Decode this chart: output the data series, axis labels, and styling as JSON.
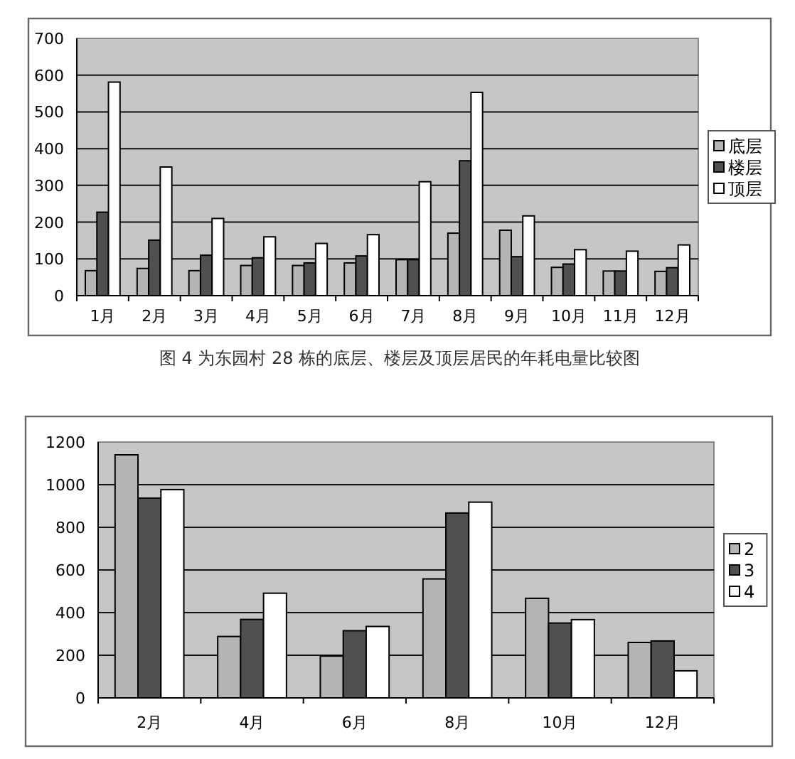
{
  "chart_data": [
    {
      "type": "bar",
      "categories": [
        "1月",
        "2月",
        "3月",
        "4月",
        "5月",
        "6月",
        "7月",
        "8月",
        "9月",
        "10月",
        "11月",
        "12月"
      ],
      "series": [
        {
          "name": "底层",
          "color": "#b4b4b4",
          "values": [
            68,
            74,
            68,
            82,
            82,
            89,
            98,
            170,
            178,
            77,
            67,
            66
          ]
        },
        {
          "name": "楼层",
          "color": "#505050",
          "values": [
            227,
            151,
            110,
            103,
            89,
            108,
            98,
            367,
            106,
            86,
            67,
            76
          ]
        },
        {
          "name": "顶层",
          "color": "#ffffff",
          "values": [
            581,
            350,
            210,
            160,
            142,
            166,
            310,
            553,
            217,
            125,
            121,
            138
          ]
        }
      ],
      "ylim": [
        0,
        700
      ],
      "yticks": [
        0,
        100,
        200,
        300,
        400,
        500,
        600,
        700
      ],
      "grid": "y",
      "legend": "right",
      "annotations": [
        "图 4 为东园村 28 栋的底层、楼层及顶层居民的年耗电量比较图"
      ]
    },
    {
      "type": "bar",
      "categories": [
        "2月",
        "4月",
        "6月",
        "8月",
        "10月",
        "12月"
      ],
      "series": [
        {
          "name": "2",
          "color": "#b4b4b4",
          "values": [
            1140,
            288,
            196,
            558,
            467,
            260
          ]
        },
        {
          "name": "3",
          "color": "#505050",
          "values": [
            937,
            368,
            315,
            867,
            351,
            267
          ]
        },
        {
          "name": "4",
          "color": "#ffffff",
          "values": [
            977,
            491,
            335,
            918,
            367,
            127
          ]
        }
      ],
      "ylim": [
        0,
        1200
      ],
      "yticks": [
        0,
        200,
        400,
        600,
        800,
        1000,
        1200
      ],
      "grid": "y",
      "legend": "right"
    }
  ]
}
